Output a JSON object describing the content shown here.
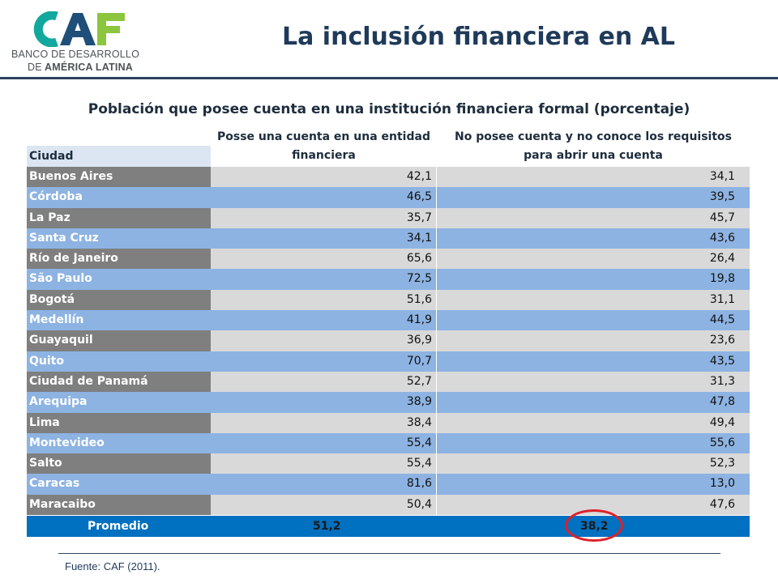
{
  "logo": {
    "mark": "CAF",
    "line1": "BANCO DE DESARROLLO",
    "line2_prefix": "DE",
    "line2_main": "AMÉRICA LATINA",
    "colors": {
      "teal": "#13a89e",
      "blue": "#1f4e79",
      "green": "#8cc63f"
    }
  },
  "page": {
    "title": "La inclusión financiera en AL"
  },
  "table": {
    "title": "Población que posee cuenta en una institución financiera formal (porcentaje)",
    "headers": {
      "city": "Ciudad",
      "col1_line1": "Posse una cuenta en una entidad",
      "col1_line2": "financiera",
      "col2_line1": "No posee cuenta y no conoce los requisitos",
      "col2_line2": "para abrir una cuenta"
    },
    "rows": [
      {
        "city": "Buenos Aires",
        "has_account": "42,1",
        "no_account": "34,1"
      },
      {
        "city": "Córdoba",
        "has_account": "46,5",
        "no_account": "39,5"
      },
      {
        "city": "La Paz",
        "has_account": "35,7",
        "no_account": "45,7"
      },
      {
        "city": "Santa Cruz",
        "has_account": "34,1",
        "no_account": "43,6"
      },
      {
        "city": "Río de Janeiro",
        "has_account": "65,6",
        "no_account": "26,4"
      },
      {
        "city": "São Paulo",
        "has_account": "72,5",
        "no_account": "19,8"
      },
      {
        "city": "Bogotá",
        "has_account": "51,6",
        "no_account": "31,1"
      },
      {
        "city": "Medellín",
        "has_account": "41,9",
        "no_account": "44,5"
      },
      {
        "city": "Guayaquil",
        "has_account": "36,9",
        "no_account": "23,6"
      },
      {
        "city": "Quito",
        "has_account": "70,7",
        "no_account": "43,5"
      },
      {
        "city": "Ciudad de Panamá",
        "has_account": "52,7",
        "no_account": "31,3"
      },
      {
        "city": "Arequipa",
        "has_account": "38,9",
        "no_account": "47,8"
      },
      {
        "city": "Lima",
        "has_account": "38,4",
        "no_account": "49,4"
      },
      {
        "city": "Montevideo",
        "has_account": "55,4",
        "no_account": "55,6"
      },
      {
        "city": "Salto",
        "has_account": "55,4",
        "no_account": "52,3"
      },
      {
        "city": "Caracas",
        "has_account": "81,6",
        "no_account": "13,0"
      },
      {
        "city": "Maracaibo",
        "has_account": "50,4",
        "no_account": "47,6"
      }
    ],
    "average": {
      "label": "Promedio",
      "has_account": "51,2",
      "no_account": "38,2"
    },
    "colors": {
      "row_dark_city": "#7f7f7f",
      "row_dark_values": "#d9d9d9",
      "row_light": "#8db3e2",
      "header_city": "#dce6f2",
      "average_row": "#0070c0",
      "highlight_circle": "#e0202a"
    }
  },
  "footer": {
    "source": "Fuente: CAF (2011)."
  }
}
